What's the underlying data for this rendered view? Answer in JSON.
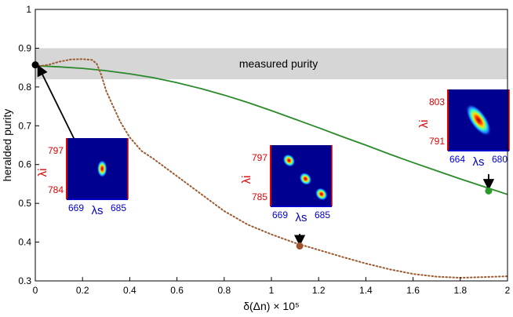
{
  "chart_data": {
    "type": "line",
    "xlabel": "δ(Δn) × 10⁵",
    "ylabel": "heralded purity",
    "xlim": [
      0,
      2
    ],
    "ylim": [
      0.3,
      1
    ],
    "xticks": [
      "0",
      "0.2",
      "0.4",
      "0.6",
      "0.8",
      "1",
      "1.2",
      "1.4",
      "1.6",
      "1.8",
      "2"
    ],
    "yticks": [
      "0.3",
      "0.4",
      "0.5",
      "0.6",
      "0.7",
      "0.8",
      "0.9",
      "1"
    ],
    "grid": false,
    "band": {
      "label": "measured purity",
      "y_range": [
        0.82,
        0.9
      ],
      "color": "#d6d6d6"
    },
    "series": [
      {
        "style": "solid",
        "color": "#2a8a2a",
        "x": [
          0,
          0.1,
          0.2,
          0.3,
          0.4,
          0.5,
          0.6,
          0.7,
          0.8,
          0.9,
          1.0,
          1.1,
          1.2,
          1.3,
          1.4,
          1.5,
          1.6,
          1.7,
          1.8,
          1.9,
          2.0
        ],
        "y": [
          0.855,
          0.852,
          0.848,
          0.842,
          0.834,
          0.824,
          0.811,
          0.796,
          0.779,
          0.76,
          0.739,
          0.717,
          0.695,
          0.672,
          0.65,
          0.627,
          0.605,
          0.584,
          0.563,
          0.543,
          0.523
        ]
      },
      {
        "style": "dotted",
        "color": "#9c5a2e",
        "x": [
          0,
          0.03,
          0.06,
          0.1,
          0.15,
          0.2,
          0.24,
          0.26,
          0.28,
          0.3,
          0.33,
          0.36,
          0.4,
          0.45,
          0.5,
          0.6,
          0.7,
          0.8,
          0.9,
          1.0,
          1.1,
          1.2,
          1.3,
          1.4,
          1.5,
          1.6,
          1.7,
          1.8,
          1.9,
          2.0
        ],
        "y": [
          0.855,
          0.855,
          0.858,
          0.865,
          0.871,
          0.872,
          0.87,
          0.86,
          0.83,
          0.79,
          0.75,
          0.71,
          0.67,
          0.635,
          0.615,
          0.57,
          0.525,
          0.48,
          0.445,
          0.42,
          0.398,
          0.38,
          0.362,
          0.345,
          0.33,
          0.318,
          0.311,
          0.308,
          0.31,
          0.312
        ]
      }
    ],
    "markers": [
      {
        "x": 0.0,
        "y": 0.857,
        "color": "#000000"
      },
      {
        "x": 1.12,
        "y": 0.39,
        "color": "#a0522d"
      },
      {
        "x": 1.92,
        "y": 0.532,
        "color": "#2a9a2a"
      }
    ],
    "insets": [
      {
        "x_axis": "λs",
        "y_axis": "λi",
        "y_ticks": [
          "797",
          "784"
        ],
        "x_ticks": [
          "669",
          "685"
        ],
        "blobs": [
          [
            0.58,
            0.5,
            0.08,
            0.14,
            0
          ]
        ]
      },
      {
        "x_axis": "λs",
        "y_axis": "λi",
        "y_ticks": [
          "797",
          "785"
        ],
        "x_ticks": [
          "669",
          "685"
        ],
        "blobs": [
          [
            0.3,
            0.25,
            0.09,
            0.11,
            -40
          ],
          [
            0.57,
            0.55,
            0.09,
            0.11,
            -40
          ],
          [
            0.83,
            0.8,
            0.09,
            0.11,
            -40
          ]
        ]
      },
      {
        "x_axis": "λs",
        "y_axis": "λi",
        "y_ticks": [
          "803",
          "791"
        ],
        "x_ticks": [
          "664",
          "680"
        ],
        "blobs": [
          [
            0.5,
            0.5,
            0.13,
            0.3,
            -35
          ]
        ]
      }
    ]
  }
}
